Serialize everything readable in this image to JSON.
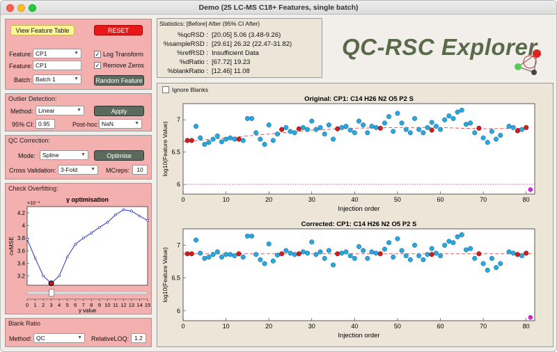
{
  "window": {
    "title": "Demo (25 LC-MS C18+ Features, single batch)"
  },
  "controls": {
    "view_feature_table": "View Feature Table",
    "reset": "RESET",
    "feature_label": "Feature:",
    "feature_select": "CP1",
    "feature_label2": "Feature:",
    "feature_text": "CP1",
    "batch_label": "Batch:",
    "batch_select": "Batch 1",
    "log_transform": "Log Transform",
    "remove_zeros": "Remove Zeros",
    "random_feature": "Random Feature"
  },
  "outlier": {
    "title": "Outlier Detection:",
    "method_label": "Method:",
    "method": "Linear",
    "apply": "Apply",
    "ci_label": "95% CI:",
    "ci_value": "0.95",
    "posthoc_label": "Post-hoc:",
    "posthoc": "NaN"
  },
  "qc": {
    "title": "QC Correction:",
    "mode_label": "Mode:",
    "mode": "Spline",
    "optimise": "Optimise",
    "cv_label": "Cross Validation:",
    "cv": "3-Fold",
    "mcreps_label": "MCreps:",
    "mcreps": "10"
  },
  "overfit": {
    "title": "Check Overfitting:",
    "chart_title": "γ  optimisation",
    "ylabel": "cvMSE",
    "xlabel": "γ value",
    "exponent": "×10⁻³"
  },
  "blank": {
    "title": "Blank Ratio",
    "method_label": "Method:",
    "method": "QC",
    "loq_label": "RelativeLOQ:",
    "loq": "1.2"
  },
  "stats": {
    "header": "Statistics: [Before] After (95% CI After)",
    "rows": [
      {
        "k": "%qcRSD :",
        "v": "[20.05] 5.06 (3.48-9.26)"
      },
      {
        "k": "%sampleRSD :",
        "v": "[29.61] 26.32 (22.47-31.82)"
      },
      {
        "k": "%refRSD :",
        "v": "Insufficient Data"
      },
      {
        "k": "%dRatio :",
        "v": "[67.72] 19.23"
      },
      {
        "k": "%blankRatio :",
        "v": "[12.46] 11.08"
      }
    ]
  },
  "brand": {
    "logo_text": "QC-RSC Explorer"
  },
  "plots": {
    "ignore_blanks": "Ignore Blanks",
    "top_title": "Original: CP1: C14 H26 N2 O5 P2 S",
    "bottom_title": "Corrected: CP1: C14 H26 N2 O5 P2 S",
    "xlabel": "Injection order",
    "ylabel": "log10(Feature Value)"
  },
  "colors": {
    "panel": "#f3b0ae",
    "sample": "#29a8de",
    "qc": "#cc1f1f",
    "blank": "#dd22dd",
    "trend": "#d44"
  },
  "chart_data": [
    {
      "type": "line",
      "title": "γ  optimisation",
      "xlabel": "γ value",
      "ylabel": "cvMSE",
      "y_multiplier": "×10⁻³",
      "x": [
        0,
        1,
        2,
        3,
        4,
        5,
        6,
        7,
        8,
        9,
        10,
        11,
        12,
        13,
        14,
        15
      ],
      "y": [
        3.78,
        3.48,
        3.2,
        3.08,
        3.2,
        3.5,
        3.7,
        3.8,
        3.88,
        3.97,
        4.05,
        4.17,
        4.25,
        4.23,
        4.15,
        4.08
      ],
      "selected_x": 3,
      "xlim": [
        0,
        15
      ],
      "ylim": [
        3.05,
        4.3
      ],
      "yticks": [
        3.2,
        3.4,
        3.6,
        3.8,
        4,
        4.2
      ]
    },
    {
      "type": "scatter",
      "title": "Original: CP1: C14 H26 N2 O5 P2 S",
      "xlabel": "Injection order",
      "ylabel": "log10(Feature Value)",
      "xlim": [
        0,
        82
      ],
      "ylim": [
        5.85,
        7.25
      ],
      "xticks": [
        0,
        10,
        20,
        30,
        40,
        50,
        60,
        70,
        80
      ],
      "yticks": [
        6,
        6.5,
        7
      ],
      "blank_line": 6,
      "samples": [
        [
          3,
          6.9
        ],
        [
          4,
          6.72
        ],
        [
          5,
          6.62
        ],
        [
          6,
          6.65
        ],
        [
          7,
          6.7
        ],
        [
          8,
          6.75
        ],
        [
          9,
          6.66
        ],
        [
          10,
          6.7
        ],
        [
          11,
          6.72
        ],
        [
          12,
          6.7
        ],
        [
          14,
          6.68
        ],
        [
          15,
          7.02
        ],
        [
          16,
          7.02
        ],
        [
          17,
          6.8
        ],
        [
          18,
          6.7
        ],
        [
          19,
          6.62
        ],
        [
          20,
          6.92
        ],
        [
          21,
          6.68
        ],
        [
          22,
          6.78
        ],
        [
          24,
          6.88
        ],
        [
          25,
          6.82
        ],
        [
          26,
          6.8
        ],
        [
          28,
          6.88
        ],
        [
          29,
          6.85
        ],
        [
          30,
          6.98
        ],
        [
          31,
          6.85
        ],
        [
          32,
          6.88
        ],
        [
          33,
          6.78
        ],
        [
          34,
          6.92
        ],
        [
          35,
          6.7
        ],
        [
          37,
          6.88
        ],
        [
          38,
          6.9
        ],
        [
          39,
          6.84
        ],
        [
          40,
          6.8
        ],
        [
          41,
          6.98
        ],
        [
          42,
          6.92
        ],
        [
          43,
          6.8
        ],
        [
          44,
          6.9
        ],
        [
          45,
          6.88
        ],
        [
          47,
          6.95
        ],
        [
          48,
          7.05
        ],
        [
          49,
          6.82
        ],
        [
          50,
          7.1
        ],
        [
          51,
          6.95
        ],
        [
          52,
          6.85
        ],
        [
          53,
          6.8
        ],
        [
          54,
          7.02
        ],
        [
          55,
          6.85
        ],
        [
          56,
          6.8
        ],
        [
          57,
          6.88
        ],
        [
          58,
          6.96
        ],
        [
          59,
          6.9
        ],
        [
          60,
          6.85
        ],
        [
          61,
          7
        ],
        [
          62,
          7.06
        ],
        [
          63,
          7.02
        ],
        [
          64,
          7.12
        ],
        [
          65,
          7.15
        ],
        [
          66,
          6.93
        ],
        [
          67,
          6.95
        ],
        [
          68,
          6.8
        ],
        [
          70,
          6.72
        ],
        [
          71,
          6.65
        ],
        [
          72,
          6.82
        ],
        [
          73,
          6.7
        ],
        [
          74,
          6.76
        ],
        [
          76,
          6.9
        ],
        [
          77,
          6.88
        ],
        [
          79,
          6.85
        ]
      ],
      "qc": [
        [
          1,
          6.68
        ],
        [
          2,
          6.68
        ],
        [
          13,
          6.7
        ],
        [
          23,
          6.85
        ],
        [
          27,
          6.86
        ],
        [
          36,
          6.86
        ],
        [
          46,
          6.87
        ],
        [
          58,
          6.84
        ],
        [
          69,
          6.87
        ],
        [
          78,
          6.83
        ],
        [
          80,
          6.88
        ]
      ],
      "blanks": [
        [
          81,
          5.92
        ]
      ],
      "trend": [
        [
          0,
          6.66
        ],
        [
          10,
          6.72
        ],
        [
          20,
          6.78
        ],
        [
          30,
          6.84
        ],
        [
          40,
          6.87
        ],
        [
          50,
          6.88
        ],
        [
          60,
          6.88
        ],
        [
          70,
          6.86
        ],
        [
          80,
          6.87
        ]
      ]
    },
    {
      "type": "scatter",
      "title": "Corrected: CP1: C14 H26 N2 O5 P2 S",
      "xlabel": "Injection order",
      "ylabel": "log10(Feature Value)",
      "xlim": [
        0,
        82
      ],
      "ylim": [
        5.85,
        7.25
      ],
      "xticks": [
        0,
        10,
        20,
        30,
        40,
        50,
        60,
        70,
        80
      ],
      "yticks": [
        6,
        6.5,
        7
      ],
      "samples": [
        [
          3,
          7.08
        ],
        [
          4,
          6.88
        ],
        [
          5,
          6.8
        ],
        [
          6,
          6.82
        ],
        [
          7,
          6.86
        ],
        [
          8,
          6.9
        ],
        [
          9,
          6.82
        ],
        [
          10,
          6.86
        ],
        [
          11,
          6.86
        ],
        [
          12,
          6.84
        ],
        [
          14,
          6.82
        ],
        [
          15,
          7.14
        ],
        [
          16,
          7.14
        ],
        [
          17,
          6.86
        ],
        [
          18,
          6.78
        ],
        [
          19,
          6.72
        ],
        [
          20,
          7.02
        ],
        [
          21,
          6.76
        ],
        [
          22,
          6.85
        ],
        [
          24,
          6.92
        ],
        [
          25,
          6.88
        ],
        [
          26,
          6.86
        ],
        [
          28,
          6.9
        ],
        [
          29,
          6.88
        ],
        [
          30,
          7.05
        ],
        [
          31,
          6.86
        ],
        [
          32,
          6.9
        ],
        [
          33,
          6.8
        ],
        [
          34,
          6.92
        ],
        [
          35,
          6.7
        ],
        [
          37,
          6.88
        ],
        [
          38,
          6.9
        ],
        [
          39,
          6.84
        ],
        [
          40,
          6.8
        ],
        [
          41,
          6.98
        ],
        [
          42,
          6.92
        ],
        [
          43,
          6.8
        ],
        [
          44,
          6.9
        ],
        [
          45,
          6.88
        ],
        [
          47,
          6.94
        ],
        [
          48,
          7.04
        ],
        [
          49,
          6.82
        ],
        [
          50,
          7.1
        ],
        [
          51,
          6.92
        ],
        [
          52,
          6.84
        ],
        [
          53,
          6.78
        ],
        [
          54,
          7
        ],
        [
          55,
          6.84
        ],
        [
          56,
          6.78
        ],
        [
          57,
          6.86
        ],
        [
          58,
          6.95
        ],
        [
          59,
          6.88
        ],
        [
          60,
          6.84
        ],
        [
          61,
          7
        ],
        [
          62,
          7.06
        ],
        [
          63,
          7.04
        ],
        [
          64,
          7.13
        ],
        [
          65,
          7.16
        ],
        [
          66,
          6.93
        ],
        [
          67,
          6.95
        ],
        [
          68,
          6.8
        ],
        [
          70,
          6.72
        ],
        [
          71,
          6.62
        ],
        [
          72,
          6.8
        ],
        [
          73,
          6.66
        ],
        [
          74,
          6.72
        ],
        [
          76,
          6.9
        ],
        [
          77,
          6.88
        ],
        [
          79,
          6.84
        ]
      ],
      "qc": [
        [
          1,
          6.87
        ],
        [
          2,
          6.87
        ],
        [
          13,
          6.87
        ],
        [
          23,
          6.87
        ],
        [
          27,
          6.87
        ],
        [
          36,
          6.87
        ],
        [
          46,
          6.87
        ],
        [
          58,
          6.86
        ],
        [
          69,
          6.87
        ],
        [
          78,
          6.86
        ],
        [
          80,
          6.88
        ]
      ],
      "blanks": [
        [
          81,
          5.9
        ]
      ],
      "trend": [
        [
          0,
          6.87
        ],
        [
          82,
          6.87
        ]
      ]
    }
  ]
}
